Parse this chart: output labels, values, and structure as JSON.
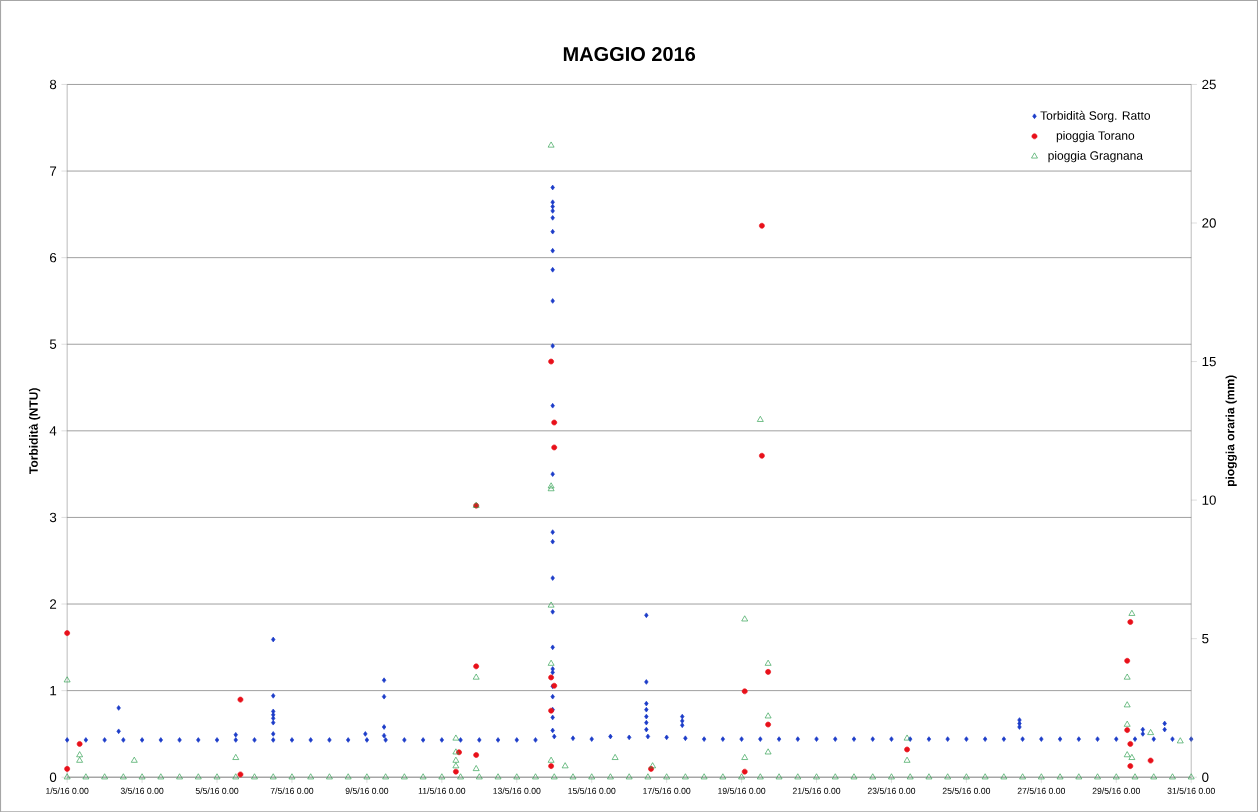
{
  "chart_data": {
    "type": "scatter",
    "title": "MAGGIO 2016",
    "ylabel": "Torbidità (NTU)",
    "y2label": "pioggia oraria (mm)",
    "xlim": [
      "2016-05-01T00:00",
      "2016-05-31T00:00"
    ],
    "xticks": [
      {
        "value": "2016-05-01T00:00",
        "label": "1/5/16 0.00"
      },
      {
        "value": "2016-05-03T00:00",
        "label": "3/5/16 0.00"
      },
      {
        "value": "2016-05-05T00:00",
        "label": "5/5/16 0.00"
      },
      {
        "value": "2016-05-07T00:00",
        "label": "7/5/16 0.00"
      },
      {
        "value": "2016-05-09T00:00",
        "label": "9/5/16 0.00"
      },
      {
        "value": "2016-05-11T00:00",
        "label": "11/5/16 0.00"
      },
      {
        "value": "2016-05-13T00:00",
        "label": "13/5/16 0.00"
      },
      {
        "value": "2016-05-15T00:00",
        "label": "15/5/16 0.00"
      },
      {
        "value": "2016-05-17T00:00",
        "label": "17/5/16 0.00"
      },
      {
        "value": "2016-05-19T00:00",
        "label": "19/5/16 0.00"
      },
      {
        "value": "2016-05-21T00:00",
        "label": "21/5/16 0.00"
      },
      {
        "value": "2016-05-23T00:00",
        "label": "23/5/16 0.00"
      },
      {
        "value": "2016-05-25T00:00",
        "label": "25/5/16 0.00"
      },
      {
        "value": "2016-05-27T00:00",
        "label": "27/5/16 0.00"
      },
      {
        "value": "2016-05-29T00:00",
        "label": "29/5/16 0.00"
      },
      {
        "value": "2016-05-31T00:00",
        "label": "31/5/16 0.00"
      }
    ],
    "ylim": [
      0,
      8
    ],
    "yticks": [
      0,
      1,
      2,
      3,
      4,
      5,
      6,
      7,
      8
    ],
    "y2lim": [
      0,
      25
    ],
    "y2ticks": [
      0,
      5,
      10,
      15,
      20,
      25
    ],
    "grid": "y",
    "legend": "top right",
    "series": [
      {
        "name": "Torbidità Sorg. Ratto",
        "color": "#1c3cc8",
        "marker": "diamond",
        "x": [
          "2016-05-01T00:00",
          "2016-05-01T12:00",
          "2016-05-02T00:00",
          "2016-05-02T12:00",
          "2016-05-03T00:00",
          "2016-05-03T12:00",
          "2016-05-04T00:00",
          "2016-05-04T12:00",
          "2016-05-05T00:00",
          "2016-05-05T12:00",
          "2016-05-06T00:00",
          "2016-05-06T12:00",
          "2016-05-07T00:00",
          "2016-05-07T12:00",
          "2016-05-08T00:00",
          "2016-05-08T12:00",
          "2016-05-09T00:00",
          "2016-05-09T12:00",
          "2016-05-10T00:00",
          "2016-05-10T12:00",
          "2016-05-11T00:00",
          "2016-05-11T12:00",
          "2016-05-12T00:00",
          "2016-05-12T12:00",
          "2016-05-13T00:00",
          "2016-05-13T12:00",
          "2016-05-14T00:00",
          "2016-05-14T12:00",
          "2016-05-15T00:00",
          "2016-05-15T12:00",
          "2016-05-16T00:00",
          "2016-05-16T12:00",
          "2016-05-17T00:00",
          "2016-05-17T12:00",
          "2016-05-18T00:00",
          "2016-05-18T12:00",
          "2016-05-19T00:00",
          "2016-05-19T12:00",
          "2016-05-20T00:00",
          "2016-05-20T12:00",
          "2016-05-21T00:00",
          "2016-05-21T12:00",
          "2016-05-22T00:00",
          "2016-05-22T12:00",
          "2016-05-23T00:00",
          "2016-05-23T12:00",
          "2016-05-24T00:00",
          "2016-05-24T12:00",
          "2016-05-25T00:00",
          "2016-05-25T12:00",
          "2016-05-26T00:00",
          "2016-05-26T12:00",
          "2016-05-27T00:00",
          "2016-05-27T12:00",
          "2016-05-28T00:00",
          "2016-05-28T12:00",
          "2016-05-29T00:00",
          "2016-05-29T12:00",
          "2016-05-30T00:00",
          "2016-05-30T12:00",
          "2016-05-31T00:00",
          "2016-05-02T09:00",
          "2016-05-02T09:00",
          "2016-05-05T12:00",
          "2016-05-06T12:00",
          "2016-05-06T12:00",
          "2016-05-06T12:00",
          "2016-05-06T12:00",
          "2016-05-06T12:00",
          "2016-05-06T12:00",
          "2016-05-06T12:00",
          "2016-05-08T23:00",
          "2016-05-09T11:00",
          "2016-05-09T11:00",
          "2016-05-09T11:00",
          "2016-05-09T11:00",
          "2016-05-13T23:00",
          "2016-05-13T23:00",
          "2016-05-13T23:00",
          "2016-05-13T23:00",
          "2016-05-13T23:00",
          "2016-05-13T23:00",
          "2016-05-13T23:00",
          "2016-05-13T23:00",
          "2016-05-13T23:00",
          "2016-05-13T23:00",
          "2016-05-13T23:00",
          "2016-05-13T23:00",
          "2016-05-13T23:00",
          "2016-05-13T23:00",
          "2016-05-13T23:00",
          "2016-05-13T23:00",
          "2016-05-13T23:00",
          "2016-05-13T23:00",
          "2016-05-13T23:00",
          "2016-05-13T23:00",
          "2016-05-13T23:00",
          "2016-05-13T23:00",
          "2016-05-13T23:00",
          "2016-05-13T23:00",
          "2016-05-16T11:00",
          "2016-05-16T11:00",
          "2016-05-16T11:00",
          "2016-05-16T11:00",
          "2016-05-16T11:00",
          "2016-05-16T11:00",
          "2016-05-16T11:00",
          "2016-05-17T10:00",
          "2016-05-17T10:00",
          "2016-05-17T10:00",
          "2016-05-26T10:00",
          "2016-05-26T10:00",
          "2016-05-26T10:00",
          "2016-05-29T17:00",
          "2016-05-29T17:00",
          "2016-05-30T07:00",
          "2016-05-30T07:00"
        ],
        "values": [
          0.43,
          0.43,
          0.43,
          0.43,
          0.43,
          0.43,
          0.43,
          0.43,
          0.43,
          0.43,
          0.43,
          0.43,
          0.43,
          0.43,
          0.43,
          0.43,
          0.43,
          0.43,
          0.43,
          0.43,
          0.43,
          0.43,
          0.43,
          0.43,
          0.43,
          0.43,
          0.47,
          0.45,
          0.44,
          0.47,
          0.46,
          0.47,
          0.46,
          0.45,
          0.44,
          0.44,
          0.44,
          0.44,
          0.44,
          0.44,
          0.44,
          0.44,
          0.44,
          0.44,
          0.44,
          0.44,
          0.44,
          0.44,
          0.44,
          0.44,
          0.44,
          0.44,
          0.44,
          0.44,
          0.44,
          0.44,
          0.44,
          0.44,
          0.44,
          0.44,
          0.44,
          0.8,
          0.53,
          0.49,
          1.59,
          0.94,
          0.76,
          0.72,
          0.68,
          0.63,
          0.5,
          0.5,
          1.12,
          0.93,
          0.58,
          0.48,
          6.81,
          6.64,
          6.59,
          6.54,
          6.46,
          6.3,
          6.08,
          5.86,
          5.5,
          4.98,
          4.29,
          3.5,
          2.83,
          2.72,
          2.3,
          1.91,
          1.5,
          1.25,
          1.21,
          1.05,
          0.93,
          0.78,
          0.69,
          0.54,
          1.87,
          1.1,
          0.85,
          0.78,
          0.7,
          0.63,
          0.55,
          0.7,
          0.65,
          0.6,
          0.66,
          0.62,
          0.58,
          0.55,
          0.5,
          0.62,
          0.55
        ]
      },
      {
        "name": "pioggia Torano",
        "color": "#e8101a",
        "marker": "circle",
        "axis": "y2",
        "x": [
          "2016-05-01T00:00",
          "2016-05-01T00:00",
          "2016-05-01T08:00",
          "2016-05-05T15:00",
          "2016-05-05T15:00",
          "2016-05-11T11:00",
          "2016-05-11T09:00",
          "2016-05-11T22:00",
          "2016-05-11T22:00",
          "2016-05-11T22:00",
          "2016-05-13T22:00",
          "2016-05-13T22:00",
          "2016-05-13T22:00",
          "2016-05-13T22:00",
          "2016-05-14T00:00",
          "2016-05-14T00:00",
          "2016-05-14T00:00",
          "2016-05-16T14:00",
          "2016-05-19T02:00",
          "2016-05-19T02:00",
          "2016-05-19T13:00",
          "2016-05-19T13:00",
          "2016-05-19T17:00",
          "2016-05-19T17:00",
          "2016-05-23T10:00",
          "2016-05-29T07:00",
          "2016-05-29T07:00",
          "2016-05-29T09:00",
          "2016-05-29T09:00",
          "2016-05-29T09:00",
          "2016-05-29T22:00"
        ],
        "values": [
          5.2,
          0.3,
          1.2,
          2.8,
          0.1,
          0.9,
          0.2,
          9.8,
          4.0,
          0.8,
          15.0,
          3.6,
          2.4,
          0.4,
          12.8,
          11.9,
          3.3,
          0.3,
          3.1,
          0.2,
          19.9,
          11.6,
          3.8,
          1.9,
          1.0,
          4.2,
          1.7,
          5.6,
          1.2,
          0.4,
          0.6
        ]
      },
      {
        "name": "pioggia Gragnana",
        "color": "#2e9e4f",
        "marker": "triangle",
        "axis": "y2",
        "x": [
          "2016-05-01T00:00",
          "2016-05-01T12:00",
          "2016-05-02T00:00",
          "2016-05-02T12:00",
          "2016-05-03T00:00",
          "2016-05-03T12:00",
          "2016-05-04T00:00",
          "2016-05-04T12:00",
          "2016-05-05T00:00",
          "2016-05-05T12:00",
          "2016-05-06T00:00",
          "2016-05-06T12:00",
          "2016-05-07T00:00",
          "2016-05-07T12:00",
          "2016-05-08T00:00",
          "2016-05-08T12:00",
          "2016-05-09T00:00",
          "2016-05-09T12:00",
          "2016-05-10T00:00",
          "2016-05-10T12:00",
          "2016-05-11T00:00",
          "2016-05-11T12:00",
          "2016-05-12T00:00",
          "2016-05-12T12:00",
          "2016-05-13T00:00",
          "2016-05-13T12:00",
          "2016-05-14T00:00",
          "2016-05-14T12:00",
          "2016-05-15T00:00",
          "2016-05-15T12:00",
          "2016-05-16T00:00",
          "2016-05-16T12:00",
          "2016-05-17T00:00",
          "2016-05-17T12:00",
          "2016-05-18T00:00",
          "2016-05-18T12:00",
          "2016-05-19T00:00",
          "2016-05-19T12:00",
          "2016-05-20T00:00",
          "2016-05-20T12:00",
          "2016-05-21T00:00",
          "2016-05-21T12:00",
          "2016-05-22T00:00",
          "2016-05-22T12:00",
          "2016-05-23T00:00",
          "2016-05-23T12:00",
          "2016-05-24T00:00",
          "2016-05-24T12:00",
          "2016-05-25T00:00",
          "2016-05-25T12:00",
          "2016-05-26T00:00",
          "2016-05-26T12:00",
          "2016-05-27T00:00",
          "2016-05-27T12:00",
          "2016-05-28T00:00",
          "2016-05-28T12:00",
          "2016-05-29T00:00",
          "2016-05-29T12:00",
          "2016-05-30T00:00",
          "2016-05-30T12:00",
          "2016-05-31T00:00",
          "2016-05-01T00:00",
          "2016-05-01T08:00",
          "2016-05-01T08:00",
          "2016-05-02T19:00",
          "2016-05-05T12:00",
          "2016-05-11T09:00",
          "2016-05-11T09:00",
          "2016-05-11T09:00",
          "2016-05-11T09:00",
          "2016-05-11T22:00",
          "2016-05-11T22:00",
          "2016-05-11T22:00",
          "2016-05-13T22:00",
          "2016-05-13T22:00",
          "2016-05-13T22:00",
          "2016-05-13T22:00",
          "2016-05-13T22:00",
          "2016-05-13T22:00",
          "2016-05-14T07:00",
          "2016-05-15T15:00",
          "2016-05-16T15:00",
          "2016-05-19T02:00",
          "2016-05-19T02:00",
          "2016-05-19T12:00",
          "2016-05-19T17:00",
          "2016-05-19T17:00",
          "2016-05-19T17:00",
          "2016-05-23T10:00",
          "2016-05-23T10:00",
          "2016-05-29T07:00",
          "2016-05-29T07:00",
          "2016-05-29T07:00",
          "2016-05-29T07:00",
          "2016-05-29T10:00",
          "2016-05-29T10:00",
          "2016-05-29T22:00",
          "2016-05-30T17:00"
        ],
        "values": [
          0,
          0,
          0,
          0,
          0,
          0,
          0,
          0,
          0,
          0,
          0,
          0,
          0,
          0,
          0,
          0,
          0,
          0,
          0,
          0,
          0,
          0,
          0,
          0,
          0,
          0,
          0,
          0,
          0,
          0,
          0,
          0,
          0,
          0,
          0,
          0,
          0,
          0,
          0,
          0,
          0,
          0,
          0,
          0,
          0,
          0,
          0,
          0,
          0,
          0,
          0,
          0,
          0,
          0,
          0,
          0,
          0,
          0,
          0,
          0,
          0,
          3.5,
          0.8,
          0.6,
          0.6,
          0.7,
          1.4,
          0.9,
          0.6,
          0.4,
          9.8,
          3.6,
          0.3,
          22.8,
          10.5,
          10.4,
          6.2,
          4.1,
          0.6,
          0.4,
          0.7,
          0.4,
          5.7,
          0.7,
          12.9,
          4.1,
          2.2,
          0.9,
          1.4,
          0.6,
          3.6,
          2.6,
          1.9,
          0.8,
          5.9,
          0.7,
          1.6,
          1.3
        ]
      }
    ]
  }
}
